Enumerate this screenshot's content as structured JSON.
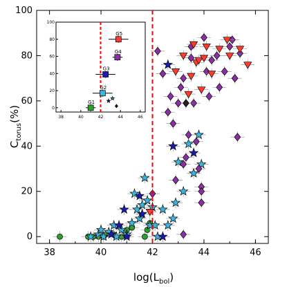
{
  "chart_data": {
    "type": "scatter",
    "x_label_main": "log(L",
    "x_label_sub": "bol",
    "x_label_close": ")",
    "y_label_main": "C",
    "y_label_sub": "torus",
    "y_label_close": "(%)",
    "xlim": [
      37.5,
      46.5
    ],
    "ylim": [
      -3,
      100
    ],
    "xticks": [
      "38",
      "40",
      "42",
      "44",
      "46"
    ],
    "yticks": [
      "0",
      "20",
      "40",
      "60",
      "80",
      "100"
    ],
    "vline_x": 42,
    "vline_color": "#ff0000",
    "grid": false,
    "legend": "none",
    "colors": {
      "green": "#2ca02c",
      "cyan": "#3ab7e0",
      "navy": "#1a1ab5",
      "purple": "#8b2fa6",
      "red": "#ff3b30",
      "black": "#222222"
    },
    "series": [
      {
        "marker": "circle",
        "color": "green",
        "points": [
          [
            38.4,
            0
          ],
          [
            39.5,
            0
          ],
          [
            39.7,
            0
          ],
          [
            39.9,
            0
          ],
          [
            40.1,
            0
          ],
          [
            40.2,
            1
          ],
          [
            40.5,
            1
          ],
          [
            40.8,
            0
          ],
          [
            41.0,
            3
          ],
          [
            41.2,
            4
          ],
          [
            41.7,
            0
          ],
          [
            41.8,
            3
          ],
          [
            41.9,
            6
          ]
        ]
      },
      {
        "marker": "star",
        "color": "cyan",
        "points": [
          [
            39.6,
            0
          ],
          [
            39.9,
            1
          ],
          [
            40.0,
            3
          ],
          [
            40.1,
            0
          ],
          [
            40.3,
            2
          ],
          [
            40.5,
            5
          ],
          [
            40.6,
            0
          ],
          [
            40.8,
            3
          ],
          [
            41.0,
            1
          ],
          [
            41.2,
            6
          ],
          [
            41.3,
            19
          ],
          [
            41.4,
            12
          ],
          [
            41.5,
            8
          ],
          [
            41.6,
            14
          ],
          [
            41.7,
            26
          ],
          [
            41.8,
            16
          ],
          [
            41.9,
            5
          ],
          [
            42.0,
            13
          ],
          [
            42.1,
            5
          ],
          [
            42.2,
            0
          ],
          [
            42.4,
            12
          ],
          [
            42.6,
            5
          ],
          [
            42.8,
            8
          ],
          [
            42.9,
            15
          ],
          [
            43.0,
            33
          ],
          [
            43.2,
            20
          ],
          [
            43.4,
            41
          ],
          [
            43.6,
            28
          ],
          [
            43.8,
            45
          ],
          [
            43.9,
            32
          ]
        ]
      },
      {
        "marker": "star",
        "color": "navy",
        "points": [
          [
            40.4,
            1
          ],
          [
            40.7,
            5
          ],
          [
            40.9,
            12
          ],
          [
            41.0,
            0
          ],
          [
            41.5,
            18
          ],
          [
            41.6,
            10
          ],
          [
            42.4,
            0
          ],
          [
            42.6,
            76
          ],
          [
            42.8,
            40
          ],
          [
            43.6,
            37
          ]
        ]
      },
      {
        "marker": "diamond",
        "color": "purple",
        "points": [
          [
            42.0,
            19
          ],
          [
            42.2,
            82
          ],
          [
            42.4,
            72
          ],
          [
            42.6,
            55
          ],
          [
            42.7,
            62
          ],
          [
            42.8,
            50
          ],
          [
            42.9,
            25
          ],
          [
            43.0,
            59
          ],
          [
            43.1,
            66
          ],
          [
            43.2,
            70
          ],
          [
            43.2,
            32
          ],
          [
            43.3,
            35
          ],
          [
            43.4,
            45
          ],
          [
            43.5,
            79
          ],
          [
            43.5,
            84
          ],
          [
            43.6,
            59
          ],
          [
            43.7,
            42
          ],
          [
            43.8,
            30
          ],
          [
            43.9,
            15
          ],
          [
            43.9,
            22
          ],
          [
            44.0,
            88
          ],
          [
            44.1,
            73
          ],
          [
            44.2,
            62
          ],
          [
            44.3,
            78
          ],
          [
            44.5,
            80
          ],
          [
            44.6,
            66
          ],
          [
            44.8,
            73
          ],
          [
            45.0,
            84
          ],
          [
            45.1,
            87
          ],
          [
            45.2,
            70
          ],
          [
            45.3,
            44
          ],
          [
            45.4,
            81
          ],
          [
            43.2,
            1
          ],
          [
            43.9,
            20
          ]
        ]
      },
      {
        "marker": "triangle-down",
        "color": "red",
        "points": [
          [
            41.9,
            11
          ],
          [
            42.9,
            73
          ],
          [
            43.2,
            80
          ],
          [
            43.4,
            63
          ],
          [
            43.5,
            71
          ],
          [
            43.6,
            85
          ],
          [
            43.7,
            77
          ],
          [
            43.8,
            78
          ],
          [
            43.9,
            65
          ],
          [
            44.0,
            79
          ],
          [
            44.1,
            84
          ],
          [
            44.3,
            72
          ],
          [
            44.6,
            83
          ],
          [
            44.9,
            87
          ],
          [
            45.0,
            80
          ],
          [
            45.4,
            83
          ],
          [
            45.7,
            76
          ]
        ]
      },
      {
        "marker": "diamond",
        "color": "black",
        "points": [
          [
            43.3,
            59
          ]
        ]
      }
    ],
    "inset": {
      "xlim": [
        37.5,
        46.5
      ],
      "ylim": [
        -5,
        100
      ],
      "xticks": [
        "38",
        "40",
        "42",
        "44",
        "46"
      ],
      "yticks": [
        "0",
        "20",
        "40",
        "60",
        "80",
        "100"
      ],
      "vline_x": 42,
      "groups": [
        {
          "label": "G1",
          "x": 41.0,
          "y": 0,
          "xerr": 0.5,
          "color": "#2ca02c"
        },
        {
          "label": "G2",
          "x": 42.2,
          "y": 17,
          "xerr": 1.0,
          "color": "#3ab7e0"
        },
        {
          "label": "G3",
          "x": 42.5,
          "y": 39,
          "xerr": 1.0,
          "color": "#1a1ab5"
        },
        {
          "label": "G4",
          "x": 43.7,
          "y": 59,
          "xerr": 0.5,
          "color": "#8b2fa6"
        },
        {
          "label": "G5",
          "x": 43.8,
          "y": 80,
          "xerr": 1.0,
          "color": "#ff3b30"
        }
      ],
      "extras": [
        {
          "marker": "star",
          "x": 43.2,
          "y": 11,
          "color": "#3ab7e0"
        },
        {
          "marker": "star",
          "x": 42.8,
          "y": 8,
          "color": "#1a1ab5"
        },
        {
          "marker": "diamond",
          "x": 43.6,
          "y": 2,
          "color": "#222222"
        }
      ]
    }
  }
}
